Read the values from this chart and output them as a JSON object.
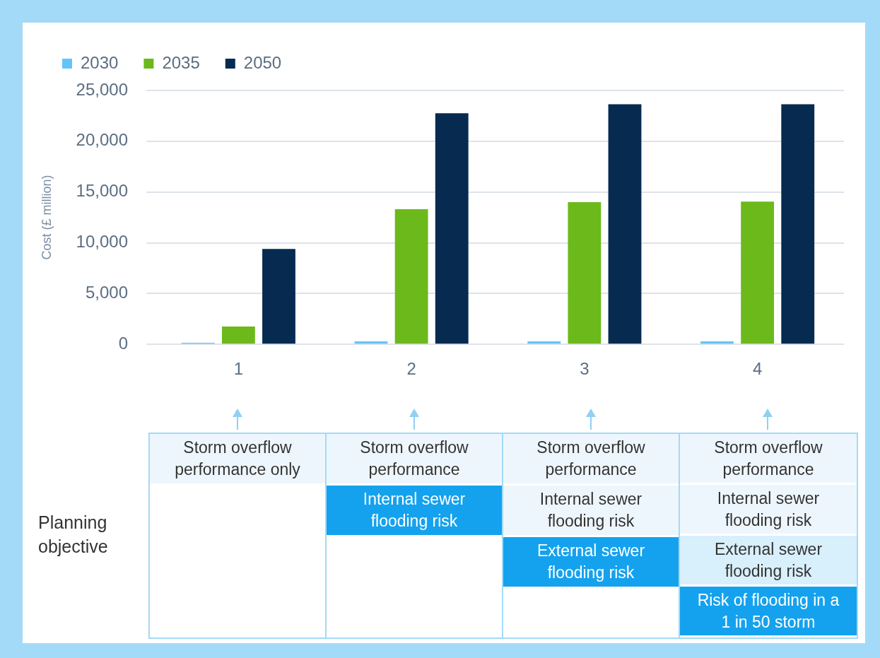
{
  "chart_data": {
    "type": "bar",
    "ylabel": "Cost (£ million)",
    "categories": [
      "1",
      "2",
      "3",
      "4"
    ],
    "series": [
      {
        "name": "2030",
        "color": "#63c5f7",
        "values": [
          150,
          300,
          300,
          300
        ]
      },
      {
        "name": "2035",
        "color": "#6cb91b",
        "values": [
          1750,
          13300,
          14000,
          14050
        ]
      },
      {
        "name": "2050",
        "color": "#062a50",
        "values": [
          9400,
          22750,
          23650,
          23650
        ]
      }
    ],
    "ylim": [
      0,
      25000
    ],
    "yticks": [
      0,
      {
        "value": 5000,
        "label": "5,000"
      },
      {
        "value": 10000,
        "label": "10,000"
      },
      {
        "value": 15000,
        "label": "15,000"
      },
      {
        "value": 20000,
        "label": "20,000"
      },
      {
        "value": 25000,
        "label": "25,000"
      }
    ],
    "grid": "y",
    "legend": "top left",
    "annotations": [
      "Planning objective",
      "Storm overflow performance only",
      "Storm overflow performance",
      "Internal sewer flooding risk",
      "Storm overflow performance",
      "Internal sewer flooding risk",
      "External sewer flooding risk",
      "Storm overflow performance",
      "Internal sewer flooding risk",
      "External sewer flooding risk",
      "Risk of flooding in a 1 in 50 storm"
    ]
  }
}
